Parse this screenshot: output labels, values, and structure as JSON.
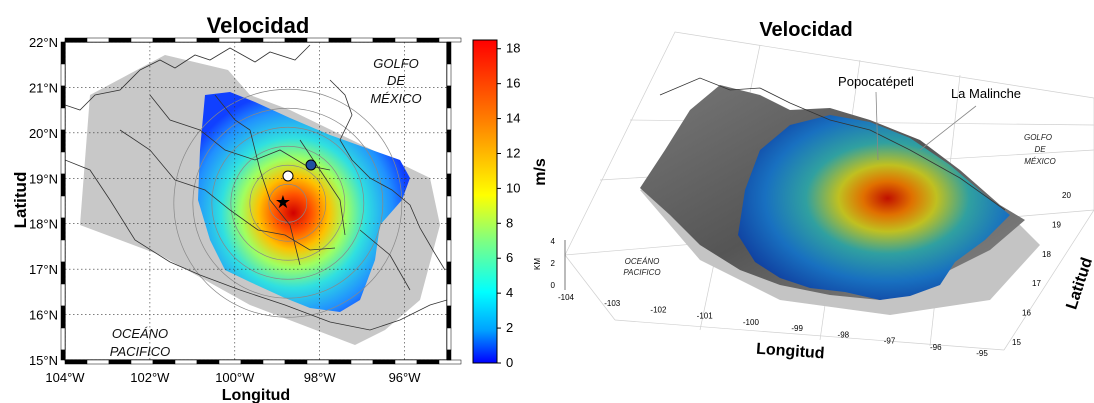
{
  "chart_data": [
    {
      "type": "heatmap",
      "title": "Velocidad",
      "xlabel": "Longitud",
      "ylabel": "Latitud",
      "x_ticks": [
        "104°W",
        "102°W",
        "100°W",
        "98°W",
        "96°W"
      ],
      "y_ticks": [
        "15°N",
        "16°N",
        "17°N",
        "18°N",
        "19°N",
        "20°N",
        "21°N",
        "22°N"
      ],
      "xlim": [
        -104,
        -95
      ],
      "ylim": [
        15,
        22
      ],
      "grid": true,
      "colorbar": {
        "label": "m/s",
        "ticks": [
          "0",
          "2",
          "4",
          "6",
          "8",
          "10",
          "12",
          "14",
          "16",
          "18"
        ],
        "range": [
          0,
          18.5
        ],
        "colors": [
          "#0000ff",
          "#00a0ff",
          "#00ffff",
          "#80ff80",
          "#ffff00",
          "#ff8000",
          "#ff0000"
        ]
      },
      "annotations": [
        "GOLFO",
        "DE",
        "MÉXICO",
        "OCEÁNO",
        "PACIFICO"
      ],
      "markers": [
        {
          "symbol": "star",
          "lon": -98.75,
          "lat": 18.45
        },
        {
          "symbol": "white-circle",
          "lon": -98.6,
          "lat": 19.0
        },
        {
          "symbol": "blue-circle",
          "lon": -98.0,
          "lat": 19.25
        }
      ],
      "peak_velocity_location": {
        "lon": -98.75,
        "lat": 18.4
      }
    },
    {
      "type": "surface",
      "title": "Velocidad",
      "xlabel": "Longitud",
      "ylabel": "Latitud",
      "zlabel": "KM",
      "x_ticks": [
        "-104",
        "-103",
        "-102",
        "-101",
        "-100",
        "-99",
        "-98",
        "-97",
        "-96",
        "-95"
      ],
      "y_ticks": [
        "15",
        "16",
        "17",
        "18",
        "19",
        "20"
      ],
      "z_ticks": [
        "0",
        "2",
        "4"
      ],
      "annotations": [
        "Popocatépetl",
        "La Malinche",
        "GOLFO",
        "DE",
        "MÉXICO",
        "OCEÁNO",
        "PACIFICO"
      ]
    }
  ]
}
